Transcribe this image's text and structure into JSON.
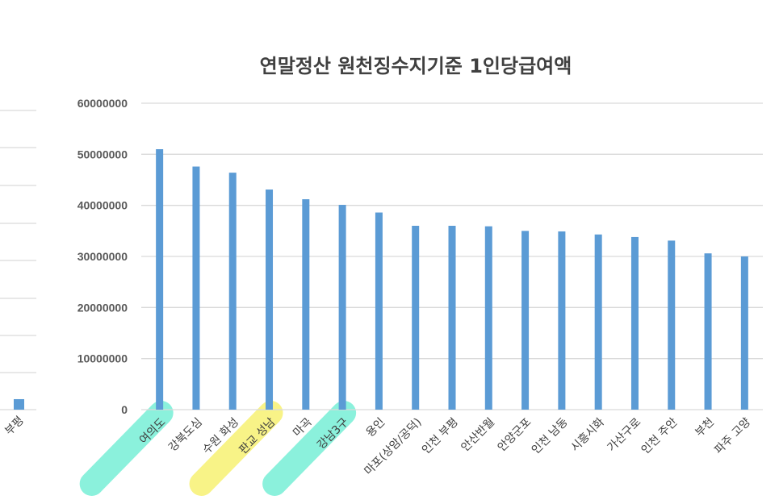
{
  "chart_data": [
    {
      "type": "bar",
      "title": "",
      "note": "",
      "categories": [
        "부평"
      ],
      "values": [
        2800000
      ],
      "bar_color": "#5b9bd5"
    },
    {
      "type": "bar",
      "title": "연말정산 원천징수지기준 1인당급여액",
      "xlabel": "",
      "ylabel": "",
      "ylim": [
        0,
        60000000
      ],
      "yticks": [
        "0",
        "10000000",
        "20000000",
        "30000000",
        "40000000",
        "50000000",
        "60000000"
      ],
      "grid": true,
      "categories": [
        "여의도",
        "강북도심",
        "수원 화성",
        "판교 성남",
        "마곡",
        "강남3구",
        "용인",
        "마포(상암/공덕)",
        "인천 부평",
        "안산반월",
        "안양군포",
        "인천 남동",
        "시흥시화",
        "가산구로",
        "인천 주안",
        "부천",
        "파주 고양"
      ],
      "values": [
        51000000,
        47600000,
        46400000,
        43100000,
        41200000,
        40100000,
        38600000,
        36000000,
        36000000,
        35900000,
        35000000,
        34900000,
        34300000,
        33800000,
        33100000,
        30600000,
        30000000
      ],
      "bar_color": "#5b9bd5",
      "highlights": [
        {
          "category": "여의도",
          "color": "#7ef0d8"
        },
        {
          "category": "판교 성남",
          "color": "#f7f27a"
        },
        {
          "category": "강남3구",
          "color": "#7ef0d8"
        }
      ]
    }
  ]
}
